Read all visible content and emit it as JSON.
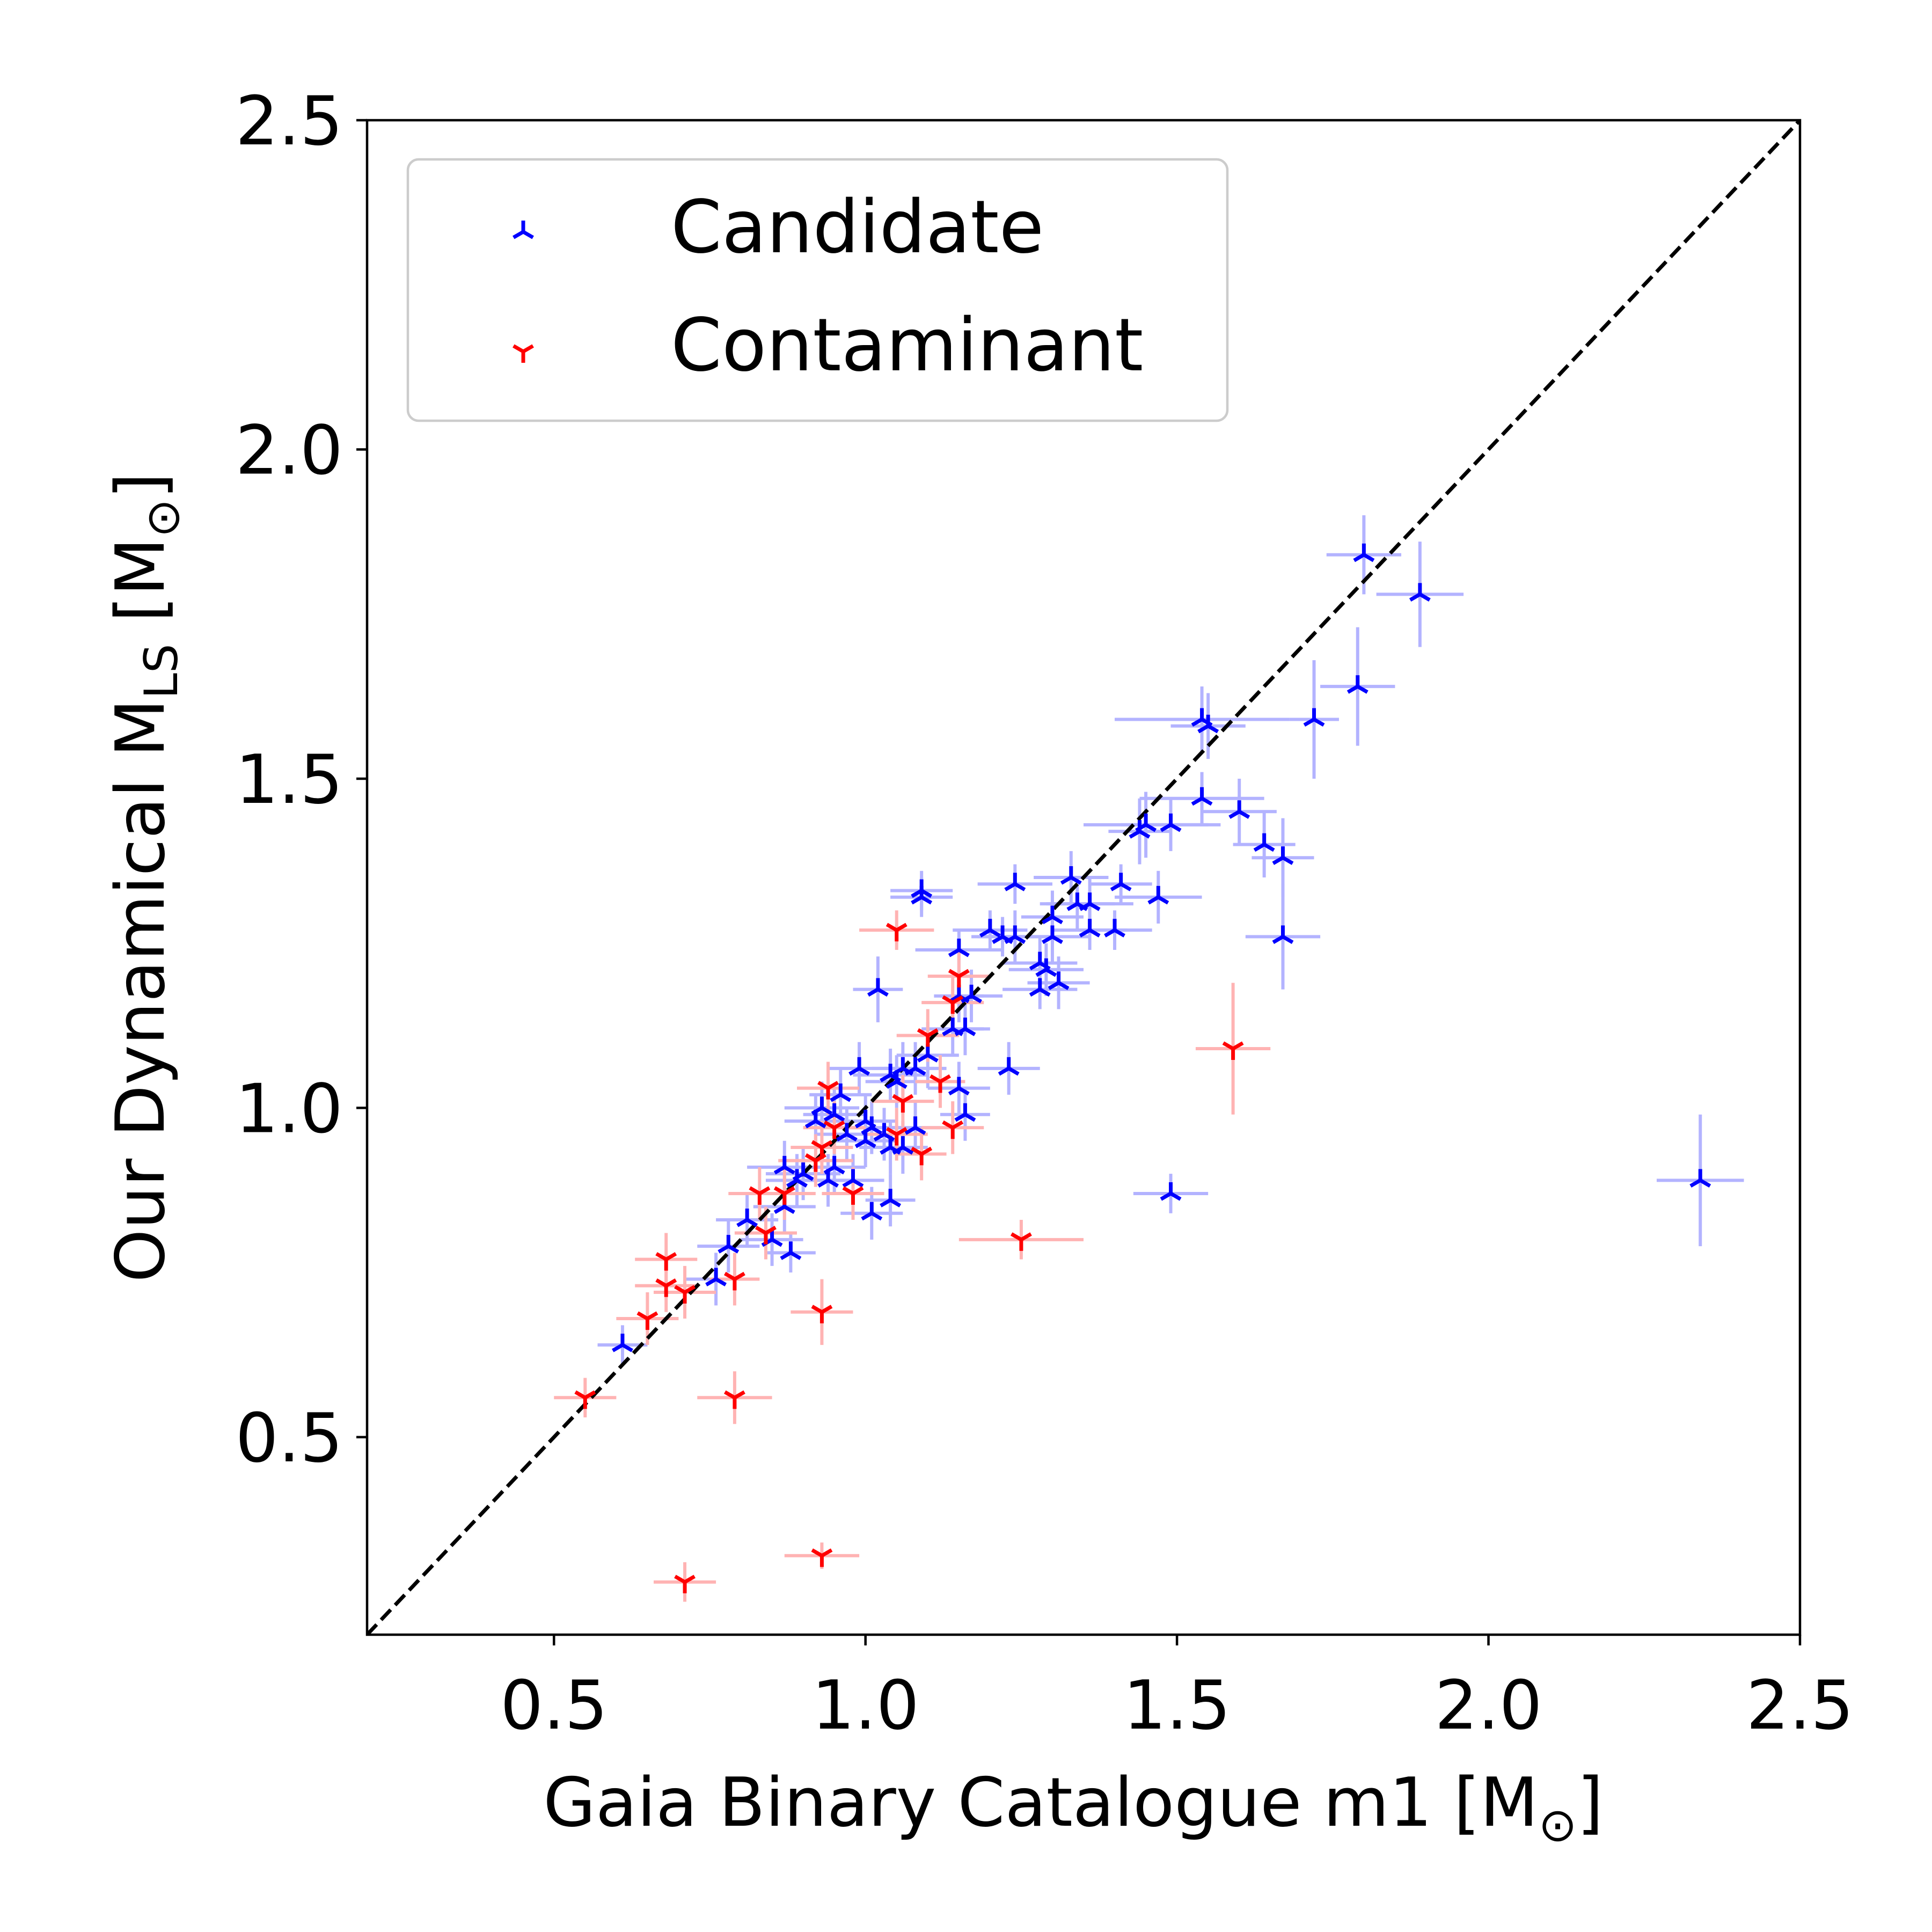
{
  "chart_data": {
    "type": "scatter",
    "title": "",
    "xlabel": "Gaia Binary Catalogue m1 [M",
    "xlabel_end": "]",
    "ylabel_main": "Our Dynamical M",
    "ylabel_sub": "LS",
    "ylabel_end": " [M",
    "ylabel_close": "]",
    "sun_symbol": "⊙",
    "xlim": [
      0.2,
      2.5
    ],
    "ylim": [
      0.2,
      2.5
    ],
    "x_ticks": [
      0.5,
      1.0,
      1.5,
      2.0,
      2.5
    ],
    "x_tick_labels": [
      "0.5",
      "1.0",
      "1.5",
      "2.0",
      "2.5"
    ],
    "y_ticks": [
      0.5,
      1.0,
      1.5,
      2.0,
      2.5
    ],
    "y_tick_labels": [
      "0.5",
      "1.0",
      "1.5",
      "2.0",
      "2.5"
    ],
    "legend_position": "top-left",
    "reference_line": {
      "type": "identity",
      "style": "dashed",
      "color": "#000000"
    },
    "series": [
      {
        "name": "Candidate",
        "color": "#0000ff",
        "errorbar_color": "#b3b3ff",
        "marker": "tri_down",
        "points": [
          [
            1.8,
            1.84,
            0.06,
            0.06
          ],
          [
            1.89,
            1.78,
            0.07,
            0.08
          ],
          [
            1.79,
            1.64,
            0.06,
            0.09
          ],
          [
            1.72,
            1.59,
            0.04,
            0.09
          ],
          [
            1.54,
            1.59,
            0.14,
            0.05
          ],
          [
            1.55,
            1.58,
            0.06,
            0.05
          ],
          [
            1.54,
            1.47,
            0.1,
            0.04
          ],
          [
            1.6,
            1.45,
            0.06,
            0.05
          ],
          [
            1.45,
            1.43,
            0.1,
            0.05
          ],
          [
            1.49,
            1.43,
            0.08,
            0.04
          ],
          [
            1.44,
            1.42,
            0.05,
            0.05
          ],
          [
            1.64,
            1.4,
            0.05,
            0.05
          ],
          [
            1.67,
            1.38,
            0.05,
            0.06
          ],
          [
            1.67,
            1.26,
            0.06,
            0.08
          ],
          [
            1.47,
            1.32,
            0.07,
            0.04
          ],
          [
            1.33,
            1.35,
            0.06,
            0.04
          ],
          [
            1.24,
            1.34,
            0.06,
            0.03
          ],
          [
            1.41,
            1.34,
            0.05,
            0.03
          ],
          [
            1.34,
            1.31,
            0.06,
            0.04
          ],
          [
            1.36,
            1.31,
            0.07,
            0.04
          ],
          [
            1.3,
            1.29,
            0.05,
            0.04
          ],
          [
            1.4,
            1.27,
            0.06,
            0.03
          ],
          [
            1.3,
            1.26,
            0.06,
            0.04
          ],
          [
            1.36,
            1.27,
            0.06,
            0.03
          ],
          [
            1.2,
            1.27,
            0.06,
            0.03
          ],
          [
            1.22,
            1.26,
            0.05,
            0.03
          ],
          [
            1.24,
            1.26,
            0.06,
            0.04
          ],
          [
            1.15,
            1.24,
            0.07,
            0.03
          ],
          [
            1.28,
            1.22,
            0.06,
            0.04
          ],
          [
            1.29,
            1.21,
            0.06,
            0.04
          ],
          [
            1.31,
            1.19,
            0.05,
            0.04
          ],
          [
            1.28,
            1.18,
            0.06,
            0.03
          ],
          [
            1.09,
            1.33,
            0.05,
            0.03
          ],
          [
            1.09,
            1.32,
            0.05,
            0.03
          ],
          [
            1.02,
            1.18,
            0.04,
            0.05
          ],
          [
            1.15,
            1.17,
            0.04,
            0.04
          ],
          [
            1.17,
            1.17,
            0.05,
            0.04
          ],
          [
            1.16,
            1.12,
            0.04,
            0.04
          ],
          [
            1.14,
            1.12,
            0.05,
            0.04
          ],
          [
            1.23,
            1.06,
            0.05,
            0.04
          ],
          [
            1.1,
            1.08,
            0.05,
            0.05
          ],
          [
            1.08,
            1.06,
            0.05,
            0.04
          ],
          [
            1.06,
            1.06,
            0.05,
            0.04
          ],
          [
            1.04,
            1.05,
            0.06,
            0.04
          ],
          [
            1.05,
            1.04,
            0.05,
            0.04
          ],
          [
            0.99,
            1.06,
            0.05,
            0.04
          ],
          [
            1.15,
            1.03,
            0.05,
            0.04
          ],
          [
            0.96,
            1.02,
            0.05,
            0.04
          ],
          [
            0.93,
            1.0,
            0.06,
            0.04
          ],
          [
            0.92,
            0.98,
            0.05,
            0.04
          ],
          [
            0.95,
            0.99,
            0.05,
            0.04
          ],
          [
            1.16,
            0.99,
            0.04,
            0.04
          ],
          [
            1.0,
            0.98,
            0.05,
            0.04
          ],
          [
            1.08,
            0.97,
            0.04,
            0.04
          ],
          [
            1.01,
            0.97,
            0.05,
            0.04
          ],
          [
            0.97,
            0.96,
            0.05,
            0.04
          ],
          [
            1.03,
            0.96,
            0.05,
            0.04
          ],
          [
            1.0,
            0.95,
            0.05,
            0.04
          ],
          [
            1.04,
            0.94,
            0.05,
            0.04
          ],
          [
            1.06,
            0.94,
            0.04,
            0.04
          ],
          [
            0.95,
            0.91,
            0.05,
            0.04
          ],
          [
            0.87,
            0.91,
            0.06,
            0.04
          ],
          [
            0.9,
            0.9,
            0.06,
            0.04
          ],
          [
            0.89,
            0.89,
            0.05,
            0.04
          ],
          [
            0.94,
            0.89,
            0.05,
            0.04
          ],
          [
            0.98,
            0.89,
            0.05,
            0.04
          ],
          [
            1.04,
            0.86,
            0.04,
            0.04
          ],
          [
            1.01,
            0.84,
            0.05,
            0.04
          ],
          [
            0.87,
            0.85,
            0.05,
            0.04
          ],
          [
            0.81,
            0.83,
            0.05,
            0.04
          ],
          [
            0.85,
            0.8,
            0.05,
            0.04
          ],
          [
            0.78,
            0.79,
            0.05,
            0.04
          ],
          [
            0.88,
            0.78,
            0.04,
            0.03
          ],
          [
            0.76,
            0.74,
            0.05,
            0.04
          ],
          [
            0.61,
            0.64,
            0.04,
            0.03
          ],
          [
            1.49,
            0.87,
            0.06,
            0.03
          ],
          [
            2.34,
            0.89,
            0.07,
            0.1
          ]
        ]
      },
      {
        "name": "Contaminant",
        "color": "#ff0000",
        "errorbar_color": "#ffb3b3",
        "marker": "tri_up",
        "points": [
          [
            1.05,
            1.27,
            0.06,
            0.03
          ],
          [
            1.15,
            1.2,
            0.05,
            0.04
          ],
          [
            1.14,
            1.16,
            0.05,
            0.04
          ],
          [
            1.1,
            1.11,
            0.05,
            0.04
          ],
          [
            1.12,
            1.04,
            0.04,
            0.04
          ],
          [
            1.06,
            1.01,
            0.05,
            0.04
          ],
          [
            0.94,
            1.03,
            0.05,
            0.04
          ],
          [
            1.14,
            0.97,
            0.05,
            0.04
          ],
          [
            1.05,
            0.96,
            0.05,
            0.04
          ],
          [
            1.09,
            0.93,
            0.04,
            0.04
          ],
          [
            0.95,
            0.97,
            0.05,
            0.04
          ],
          [
            0.93,
            0.94,
            0.05,
            0.04
          ],
          [
            0.92,
            0.92,
            0.06,
            0.04
          ],
          [
            0.98,
            0.87,
            0.05,
            0.04
          ],
          [
            0.87,
            0.87,
            0.05,
            0.04
          ],
          [
            0.83,
            0.87,
            0.05,
            0.04
          ],
          [
            0.84,
            0.81,
            0.05,
            0.04
          ],
          [
            1.59,
            1.09,
            0.06,
            0.1
          ],
          [
            1.25,
            0.8,
            0.1,
            0.03
          ],
          [
            0.68,
            0.77,
            0.05,
            0.04
          ],
          [
            0.79,
            0.74,
            0.04,
            0.04
          ],
          [
            0.68,
            0.73,
            0.05,
            0.04
          ],
          [
            0.71,
            0.72,
            0.05,
            0.04
          ],
          [
            0.65,
            0.68,
            0.05,
            0.04
          ],
          [
            0.93,
            0.69,
            0.05,
            0.05
          ],
          [
            0.79,
            0.56,
            0.06,
            0.04
          ],
          [
            0.55,
            0.56,
            0.05,
            0.03
          ],
          [
            0.93,
            0.32,
            0.06,
            0.02
          ],
          [
            0.71,
            0.28,
            0.05,
            0.03
          ]
        ]
      }
    ]
  }
}
